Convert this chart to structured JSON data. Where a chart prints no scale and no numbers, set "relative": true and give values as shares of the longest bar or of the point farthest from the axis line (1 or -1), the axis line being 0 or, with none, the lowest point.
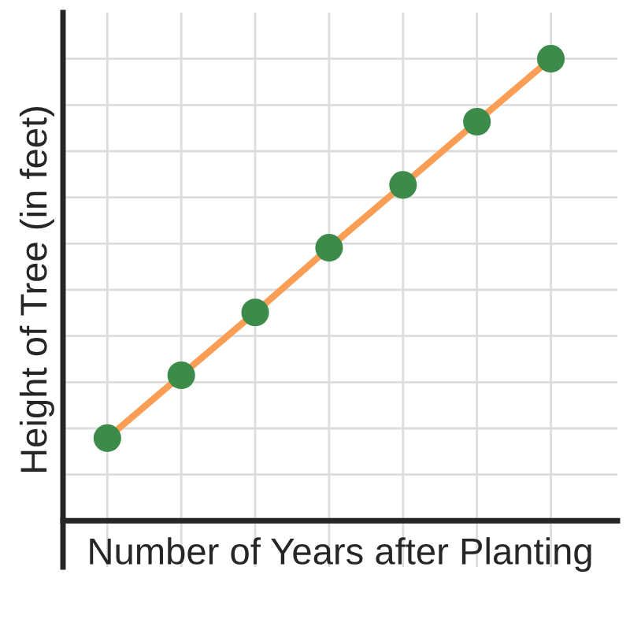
{
  "chart_data": {
    "type": "line",
    "relative": true,
    "xlabel": "Number of Years after Planting",
    "ylabel": "Height of Tree (in feet)",
    "categories": [
      null,
      null,
      null,
      null,
      null,
      null,
      null
    ],
    "series": [
      {
        "color": "#fa9d55",
        "colors": [
          "#3d8b4a",
          "#3d8b4a",
          "#3d8b4a",
          "#3d8b4a",
          "#3d8b4a",
          "#3d8b4a",
          "#3d8b4a"
        ],
        "values": [
          0.179,
          0.315,
          0.451,
          0.591,
          0.727,
          0.864,
          1
        ]
      }
    ],
    "marker": "circle",
    "grid": true
  }
}
